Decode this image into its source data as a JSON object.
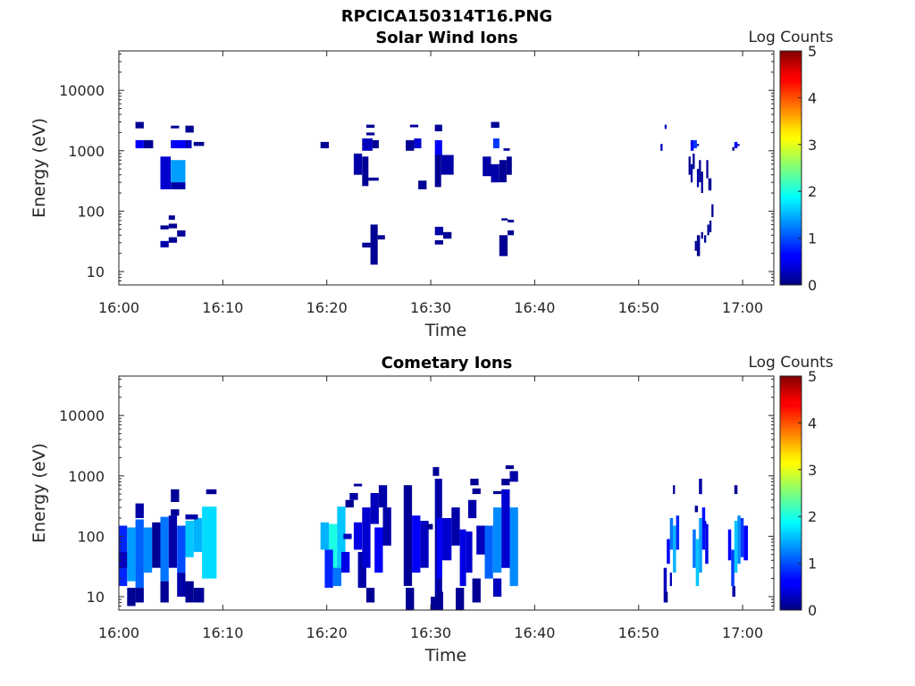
{
  "figure": {
    "title": "RPCICA150314T16.PNG"
  },
  "chart_data": [
    {
      "type": "heatmap",
      "title": "Solar Wind Ions",
      "xlabel": "Time",
      "ylabel": "Energy (eV)",
      "x_tick_labels": [
        "16:00",
        "16:10",
        "16:20",
        "16:30",
        "16:40",
        "16:50",
        "17:00"
      ],
      "x_tick_minutes": [
        0,
        10,
        20,
        30,
        40,
        50,
        60
      ],
      "xlim_minutes": [
        0,
        63
      ],
      "y_scale": "log",
      "ylim": [
        6,
        45000
      ],
      "y_tick_values": [
        10,
        100,
        1000,
        10000
      ],
      "y_tick_labels": [
        "10",
        "100",
        "1000",
        "10000"
      ],
      "colorbar": {
        "label": "Log Counts",
        "range": [
          0,
          5
        ],
        "tick_labels": [
          "0",
          "1",
          "2",
          "3",
          "4",
          "5"
        ]
      },
      "patches": [
        [
          1.6,
          2.4,
          2350,
          3000,
          0.1
        ],
        [
          1.6,
          2.4,
          1100,
          1500,
          0.6
        ],
        [
          2.4,
          3.3,
          1100,
          1500,
          0.1
        ],
        [
          4.0,
          5.0,
          230,
          800,
          0.4
        ],
        [
          5.0,
          6.4,
          300,
          700,
          1.4
        ],
        [
          5.0,
          6.4,
          230,
          300,
          0.2
        ],
        [
          5.0,
          6.4,
          1100,
          1500,
          0.6
        ],
        [
          5.0,
          5.8,
          2350,
          2600,
          0.1
        ],
        [
          6.4,
          7.0,
          1100,
          1500,
          0.3
        ],
        [
          6.4,
          7.2,
          2000,
          2600,
          0.1
        ],
        [
          7.2,
          8.2,
          1200,
          1400,
          0.1
        ],
        [
          4.0,
          4.8,
          50,
          58,
          0.1
        ],
        [
          4.8,
          5.4,
          72,
          85,
          0.1
        ],
        [
          4.8,
          5.6,
          52,
          62,
          0.1
        ],
        [
          4.0,
          4.8,
          25,
          32,
          0.2
        ],
        [
          4.8,
          5.6,
          30,
          37,
          0.1
        ],
        [
          5.6,
          6.4,
          38,
          48,
          0.1
        ],
        [
          19.4,
          20.2,
          1100,
          1400,
          0.1
        ],
        [
          22.6,
          23.4,
          400,
          900,
          0.2
        ],
        [
          23.4,
          24.0,
          260,
          800,
          0.1
        ],
        [
          24.0,
          25.0,
          320,
          360,
          0.1
        ],
        [
          23.4,
          24.4,
          1000,
          1600,
          0.3
        ],
        [
          24.4,
          25.0,
          1100,
          1500,
          0.1
        ],
        [
          23.8,
          24.6,
          2400,
          2700,
          0.1
        ],
        [
          23.8,
          24.6,
          1800,
          2000,
          0.1
        ],
        [
          23.4,
          24.2,
          25,
          30,
          0.1
        ],
        [
          24.2,
          24.9,
          13,
          60,
          0.1
        ],
        [
          24.9,
          25.6,
          34,
          40,
          0.1
        ],
        [
          27.6,
          28.4,
          1000,
          1500,
          0.1
        ],
        [
          28.4,
          29.1,
          1100,
          1600,
          0.4
        ],
        [
          28.0,
          28.8,
          2450,
          2700,
          0.1
        ],
        [
          28.8,
          29.6,
          230,
          320,
          0.1
        ],
        [
          30.4,
          31.1,
          2100,
          2700,
          0.1
        ],
        [
          30.4,
          31.1,
          800,
          1500,
          0.6
        ],
        [
          30.4,
          31.0,
          250,
          850,
          0.1
        ],
        [
          31.0,
          32.2,
          400,
          850,
          0.2
        ],
        [
          30.4,
          31.2,
          28,
          33,
          0.1
        ],
        [
          30.4,
          31.2,
          40,
          55,
          0.2
        ],
        [
          31.2,
          32.0,
          35,
          45,
          0.1
        ],
        [
          35.8,
          36.6,
          2400,
          3000,
          0.1
        ],
        [
          36.0,
          36.6,
          1100,
          1600,
          0.9
        ],
        [
          35.0,
          35.8,
          380,
          800,
          0.2
        ],
        [
          35.8,
          36.6,
          300,
          600,
          0.2
        ],
        [
          36.6,
          37.3,
          300,
          700,
          0.1
        ],
        [
          37.3,
          37.8,
          400,
          800,
          0.1
        ],
        [
          37.0,
          37.6,
          1000,
          1100,
          0.1
        ],
        [
          36.6,
          37.4,
          18,
          40,
          0.1
        ],
        [
          37.4,
          38.0,
          40,
          48,
          0.1
        ],
        [
          36.8,
          37.4,
          70,
          76,
          0.1
        ],
        [
          37.4,
          38.0,
          65,
          72,
          0.1
        ],
        [
          52.5,
          52.7,
          2300,
          2700,
          0.3
        ],
        [
          52.1,
          52.3,
          1000,
          1300,
          0.3
        ],
        [
          55.0,
          55.3,
          1000,
          1500,
          0.6
        ],
        [
          55.3,
          55.6,
          1100,
          1500,
          0.9
        ],
        [
          55.6,
          55.8,
          1200,
          1300,
          0.2
        ],
        [
          54.8,
          55.0,
          400,
          800,
          0.1
        ],
        [
          55.0,
          55.2,
          300,
          600,
          0.2
        ],
        [
          55.2,
          55.4,
          500,
          900,
          0.1
        ],
        [
          55.6,
          55.8,
          250,
          500,
          0.2
        ],
        [
          55.8,
          56.0,
          300,
          700,
          0.1
        ],
        [
          56.0,
          56.2,
          200,
          450,
          0.1
        ],
        [
          56.5,
          56.7,
          350,
          700,
          0.1
        ],
        [
          56.7,
          57.0,
          220,
          350,
          0.1
        ],
        [
          57.0,
          57.2,
          80,
          130,
          0.1
        ],
        [
          56.6,
          56.8,
          40,
          60,
          0.1
        ],
        [
          56.8,
          57.0,
          45,
          70,
          0.1
        ],
        [
          56.3,
          56.5,
          30,
          40,
          0.1
        ],
        [
          55.4,
          55.6,
          22,
          32,
          0.1
        ],
        [
          55.6,
          55.9,
          18,
          40,
          0.1
        ],
        [
          56.0,
          56.2,
          35,
          45,
          0.1
        ],
        [
          59.2,
          59.5,
          1100,
          1400,
          0.6
        ],
        [
          59.5,
          59.7,
          1200,
          1300,
          0.2
        ],
        [
          59.0,
          59.2,
          1000,
          1150,
          0.1
        ]
      ]
    },
    {
      "type": "heatmap",
      "title": "Cometary Ions",
      "xlabel": "Time",
      "ylabel": "Energy (eV)",
      "x_tick_labels": [
        "16:00",
        "16:10",
        "16:20",
        "16:30",
        "16:40",
        "16:50",
        "17:00"
      ],
      "x_tick_minutes": [
        0,
        10,
        20,
        30,
        40,
        50,
        60
      ],
      "xlim_minutes": [
        0,
        63
      ],
      "y_scale": "log",
      "ylim": [
        6,
        45000
      ],
      "y_tick_values": [
        10,
        100,
        1000,
        10000
      ],
      "y_tick_labels": [
        "10",
        "100",
        "1000",
        "10000"
      ],
      "colorbar": {
        "label": "Log Counts",
        "range": [
          0,
          5
        ],
        "tick_labels": [
          "0",
          "1",
          "2",
          "3",
          "4",
          "5"
        ]
      },
      "patches": [
        [
          0.0,
          0.8,
          15,
          150,
          0.8
        ],
        [
          0.0,
          0.8,
          30,
          55,
          0.3
        ],
        [
          0.8,
          1.6,
          18,
          140,
          1.4
        ],
        [
          1.6,
          2.4,
          14,
          190,
          1.1
        ],
        [
          1.6,
          2.4,
          200,
          350,
          0.2
        ],
        [
          0.8,
          1.6,
          7,
          14,
          0.1
        ],
        [
          2.4,
          3.2,
          25,
          140,
          1.3
        ],
        [
          3.2,
          4.0,
          30,
          170,
          0.1
        ],
        [
          4.0,
          4.8,
          18,
          210,
          1.2
        ],
        [
          4.0,
          4.8,
          8,
          18,
          0.1
        ],
        [
          4.8,
          5.6,
          30,
          220,
          0.2
        ],
        [
          5.0,
          5.8,
          220,
          280,
          0.1
        ],
        [
          5.6,
          6.4,
          25,
          150,
          1.0
        ],
        [
          5.6,
          6.4,
          10,
          25,
          0.2
        ],
        [
          5.0,
          5.8,
          370,
          600,
          0.1
        ],
        [
          6.4,
          7.2,
          45,
          180,
          1.6
        ],
        [
          7.2,
          8.0,
          55,
          200,
          1.5
        ],
        [
          6.4,
          7.2,
          8,
          18,
          0.1
        ],
        [
          7.2,
          8.2,
          8,
          14,
          0.1
        ],
        [
          8.0,
          9.4,
          20,
          310,
          1.7
        ],
        [
          8.4,
          9.4,
          500,
          600,
          0.1
        ],
        [
          6.4,
          7.6,
          190,
          230,
          0.2
        ],
        [
          1.6,
          2.4,
          8,
          14,
          0.1
        ],
        [
          19.4,
          20.2,
          60,
          170,
          1.5
        ],
        [
          20.2,
          21.0,
          25,
          160,
          2.0
        ],
        [
          21.0,
          21.8,
          30,
          310,
          1.6
        ],
        [
          19.8,
          20.6,
          14,
          60,
          0.8
        ],
        [
          20.6,
          21.4,
          15,
          30,
          1.2
        ],
        [
          21.4,
          22.2,
          25,
          55,
          0.5
        ],
        [
          21.8,
          22.6,
          300,
          400,
          0.1
        ],
        [
          22.2,
          23.0,
          400,
          520,
          0.2
        ],
        [
          22.6,
          23.4,
          60,
          170,
          0.5
        ],
        [
          23.0,
          23.8,
          14,
          55,
          0.2
        ],
        [
          23.4,
          24.2,
          30,
          300,
          0.4
        ],
        [
          24.2,
          25.0,
          160,
          520,
          0.3
        ],
        [
          23.8,
          24.6,
          8,
          14,
          0.1
        ],
        [
          24.6,
          25.4,
          25,
          140,
          0.6
        ],
        [
          25.4,
          26.2,
          70,
          300,
          0.2
        ],
        [
          22.6,
          23.4,
          670,
          740,
          0.1
        ],
        [
          25.0,
          25.8,
          300,
          700,
          0.2
        ],
        [
          21.6,
          22.4,
          90,
          110,
          0.3
        ],
        [
          27.4,
          28.2,
          15,
          700,
          0.1
        ],
        [
          28.2,
          29.0,
          25,
          220,
          0.6
        ],
        [
          29.0,
          29.8,
          30,
          180,
          0.3
        ],
        [
          27.6,
          28.4,
          6,
          14,
          0.1
        ],
        [
          30.4,
          31.1,
          10,
          900,
          0.2
        ],
        [
          30.6,
          31.1,
          20,
          200,
          0.6
        ],
        [
          31.1,
          32.0,
          40,
          200,
          0.4
        ],
        [
          30.0,
          30.6,
          6,
          10,
          0.1
        ],
        [
          30.6,
          31.2,
          6,
          12,
          0.1
        ],
        [
          29.6,
          30.2,
          130,
          160,
          0.1
        ],
        [
          30.2,
          30.8,
          1000,
          1400,
          0.1
        ],
        [
          32.0,
          32.8,
          70,
          300,
          0.2
        ],
        [
          32.8,
          33.4,
          15,
          130,
          0.5
        ],
        [
          33.4,
          34.0,
          25,
          120,
          0.4
        ],
        [
          32.4,
          33.2,
          6,
          14,
          0.1
        ],
        [
          33.6,
          34.4,
          200,
          400,
          0.2
        ],
        [
          34.4,
          35.2,
          50,
          150,
          0.3
        ],
        [
          34.0,
          34.8,
          8,
          20,
          0.1
        ],
        [
          35.2,
          36.0,
          20,
          150,
          1.1
        ],
        [
          36.0,
          36.8,
          25,
          300,
          1.3
        ],
        [
          36.0,
          36.8,
          10,
          20,
          0.3
        ],
        [
          36.8,
          37.6,
          30,
          600,
          0.4
        ],
        [
          37.6,
          38.4,
          15,
          300,
          1.3
        ],
        [
          36.0,
          36.8,
          500,
          560,
          0.1
        ],
        [
          36.8,
          37.6,
          700,
          900,
          0.1
        ],
        [
          37.6,
          38.4,
          800,
          1200,
          0.2
        ],
        [
          33.8,
          34.6,
          700,
          900,
          0.1
        ],
        [
          34.0,
          34.8,
          500,
          620,
          0.1
        ],
        [
          37.2,
          38.0,
          1300,
          1500,
          0.1
        ],
        [
          52.4,
          52.7,
          8,
          30,
          0.3
        ],
        [
          52.7,
          53.0,
          35,
          90,
          0.6
        ],
        [
          53.0,
          53.3,
          60,
          200,
          1.2
        ],
        [
          53.3,
          53.6,
          25,
          150,
          1.5
        ],
        [
          53.6,
          53.9,
          60,
          220,
          0.8
        ],
        [
          53.3,
          53.5,
          500,
          700,
          0.1
        ],
        [
          53.0,
          53.2,
          15,
          25,
          0.3
        ],
        [
          52.5,
          52.8,
          8,
          12,
          0.1
        ],
        [
          55.2,
          55.5,
          30,
          130,
          1.2
        ],
        [
          55.5,
          55.8,
          15,
          90,
          1.6
        ],
        [
          55.8,
          56.1,
          25,
          200,
          1.4
        ],
        [
          56.1,
          56.4,
          60,
          300,
          0.7
        ],
        [
          56.4,
          56.7,
          35,
          160,
          0.5
        ],
        [
          55.8,
          56.1,
          500,
          900,
          0.2
        ],
        [
          55.4,
          55.7,
          250,
          320,
          0.1
        ],
        [
          56.2,
          56.5,
          140,
          180,
          0.5
        ],
        [
          58.6,
          58.9,
          40,
          130,
          0.6
        ],
        [
          58.9,
          59.2,
          15,
          60,
          0.9
        ],
        [
          59.2,
          59.5,
          25,
          180,
          1.6
        ],
        [
          59.5,
          59.8,
          35,
          220,
          1.3
        ],
        [
          59.8,
          60.1,
          45,
          200,
          0.9
        ],
        [
          60.1,
          60.5,
          40,
          150,
          0.6
        ],
        [
          59.2,
          59.5,
          500,
          700,
          0.1
        ],
        [
          59.0,
          59.3,
          10,
          15,
          0.2
        ]
      ]
    }
  ]
}
